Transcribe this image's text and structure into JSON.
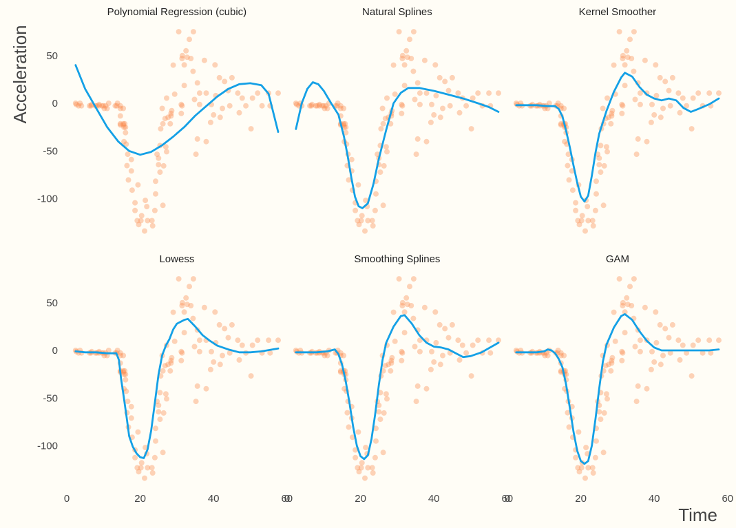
{
  "chart_data": {
    "type": "scatter",
    "ylabel": "Acceleration",
    "xlabel": "Time",
    "xlim": [
      0,
      60
    ],
    "ylim": [
      -140,
      80
    ],
    "x_ticks": [
      0,
      20,
      40,
      60
    ],
    "y_ticks": [
      -100,
      -50,
      0,
      50
    ],
    "grid": false,
    "colors": {
      "points": "#fb8c4e",
      "fit": "#14a0e6",
      "background": "#fffdf6"
    },
    "points": [
      [
        2.4,
        0.0
      ],
      [
        2.6,
        -1.3
      ],
      [
        3.2,
        -2.7
      ],
      [
        3.6,
        0.0
      ],
      [
        4.0,
        -2.7
      ],
      [
        6.2,
        -2.7
      ],
      [
        6.6,
        -2.7
      ],
      [
        6.8,
        -1.3
      ],
      [
        7.8,
        -2.7
      ],
      [
        8.2,
        -2.7
      ],
      [
        8.8,
        -1.3
      ],
      [
        8.8,
        -2.7
      ],
      [
        9.6,
        -2.7
      ],
      [
        10.0,
        -2.7
      ],
      [
        10.2,
        -5.4
      ],
      [
        10.6,
        -2.7
      ],
      [
        11.0,
        -5.4
      ],
      [
        11.4,
        0.0
      ],
      [
        13.2,
        -2.7
      ],
      [
        13.6,
        -2.7
      ],
      [
        13.8,
        0.0
      ],
      [
        14.6,
        -13.3
      ],
      [
        14.6,
        -2.7
      ],
      [
        14.6,
        -22.8
      ],
      [
        14.6,
        -21.5
      ],
      [
        14.6,
        -5.4
      ],
      [
        15.4,
        -5.4
      ],
      [
        15.4,
        -21.5
      ],
      [
        15.4,
        -22.8
      ],
      [
        15.6,
        -40.2
      ],
      [
        15.6,
        -25.2
      ],
      [
        15.8,
        -21.5
      ],
      [
        16.0,
        -25.2
      ],
      [
        16.0,
        -30.8
      ],
      [
        16.2,
        -42.9
      ],
      [
        16.4,
        -65.4
      ],
      [
        16.6,
        -53.5
      ],
      [
        16.8,
        -80.4
      ],
      [
        17.6,
        -59.0
      ],
      [
        17.6,
        -71.0
      ],
      [
        17.8,
        -91.1
      ],
      [
        18.6,
        -104.4
      ],
      [
        18.6,
        -112.5
      ],
      [
        19.2,
        -123.1
      ],
      [
        19.4,
        -85.6
      ],
      [
        19.6,
        -127.2
      ],
      [
        20.2,
        -123.1
      ],
      [
        20.4,
        -117.9
      ],
      [
        21.2,
        -134.0
      ],
      [
        21.4,
        -101.9
      ],
      [
        21.8,
        -108.4
      ],
      [
        22.0,
        -123.1
      ],
      [
        23.2,
        -123.1
      ],
      [
        23.4,
        -128.5
      ],
      [
        24.0,
        -112.5
      ],
      [
        24.2,
        -95.1
      ],
      [
        24.2,
        -81.8
      ],
      [
        24.6,
        -53.5
      ],
      [
        25.0,
        -64.4
      ],
      [
        25.0,
        -57.6
      ],
      [
        25.4,
        -72.3
      ],
      [
        25.4,
        -44.3
      ],
      [
        25.6,
        -26.8
      ],
      [
        26.0,
        -5.4
      ],
      [
        26.2,
        -107.1
      ],
      [
        26.2,
        -21.5
      ],
      [
        26.4,
        -65.6
      ],
      [
        26.8,
        -16.0
      ],
      [
        27.0,
        -45.6
      ],
      [
        27.2,
        5.4
      ],
      [
        27.2,
        -50.8
      ],
      [
        27.6,
        -14.7
      ],
      [
        28.2,
        -21.5
      ],
      [
        28.4,
        -13.3
      ],
      [
        28.4,
        -10.7
      ],
      [
        28.6,
        -7.7
      ],
      [
        29.4,
        9.5
      ],
      [
        31.2,
        -1.3
      ],
      [
        31.2,
        -10.7
      ],
      [
        31.4,
        -2.7
      ],
      [
        31.4,
        46.9
      ],
      [
        32.0,
        40.2
      ],
      [
        32.0,
        18.6
      ],
      [
        32.8,
        48.2
      ],
      [
        33.4,
        67.0
      ],
      [
        33.8,
        46.9
      ],
      [
        34.4,
        33.5
      ],
      [
        34.8,
        4.0
      ],
      [
        35.2,
        -53.5
      ],
      [
        35.6,
        -37.5
      ],
      [
        35.6,
        21.4
      ],
      [
        36.2,
        10.7
      ],
      [
        36.2,
        -1.3
      ],
      [
        38.0,
        -40.2
      ],
      [
        38.0,
        10.7
      ],
      [
        39.2,
        -20.1
      ],
      [
        39.4,
        -1.3
      ],
      [
        40.0,
        -12.2
      ],
      [
        40.4,
        40.2
      ],
      [
        40.6,
        8.0
      ],
      [
        41.6,
        26.8
      ],
      [
        41.8,
        -14.7
      ],
      [
        42.4,
        -5.4
      ],
      [
        43.0,
        22.8
      ],
      [
        44.0,
        13.3
      ],
      [
        44.4,
        -2.7
      ],
      [
        45.0,
        26.8
      ],
      [
        46.6,
        10.7
      ],
      [
        47.8,
        5.4
      ],
      [
        48.8,
        -2.7
      ],
      [
        50.2,
        -26.8
      ],
      [
        50.6,
        5.4
      ],
      [
        52.0,
        10.7
      ],
      [
        53.2,
        -2.7
      ],
      [
        55.0,
        10.7
      ],
      [
        55.4,
        -2.7
      ],
      [
        57.6,
        10.7
      ],
      [
        30.5,
        75.0
      ],
      [
        34.5,
        75.0
      ],
      [
        32.5,
        55.0
      ],
      [
        29.0,
        40.0
      ],
      [
        37.5,
        45.0
      ],
      [
        31.5,
        50.0
      ],
      [
        47.0,
        -10.0
      ]
    ],
    "panels": [
      {
        "title": "Polynomial Regression (cubic)",
        "fit": [
          [
            2.4,
            40
          ],
          [
            5,
            15
          ],
          [
            8,
            -5
          ],
          [
            11,
            -25
          ],
          [
            14,
            -40
          ],
          [
            17,
            -50
          ],
          [
            20,
            -54
          ],
          [
            23,
            -51
          ],
          [
            26,
            -44
          ],
          [
            29,
            -35
          ],
          [
            32,
            -25
          ],
          [
            35,
            -13
          ],
          [
            38,
            -3
          ],
          [
            41,
            7
          ],
          [
            44,
            15
          ],
          [
            47,
            20
          ],
          [
            50,
            21
          ],
          [
            53,
            19
          ],
          [
            55,
            10
          ],
          [
            57.6,
            -30
          ]
        ]
      },
      {
        "title": "Natural Splines",
        "fit": [
          [
            2.4,
            -27
          ],
          [
            4,
            0
          ],
          [
            5.5,
            15
          ],
          [
            7,
            22
          ],
          [
            8.5,
            20
          ],
          [
            10,
            13
          ],
          [
            12,
            0
          ],
          [
            14,
            -12
          ],
          [
            15.5,
            -35
          ],
          [
            16.5,
            -55
          ],
          [
            17.5,
            -78
          ],
          [
            18.5,
            -98
          ],
          [
            19.5,
            -108
          ],
          [
            20.5,
            -110
          ],
          [
            22,
            -105
          ],
          [
            23.5,
            -85
          ],
          [
            25,
            -58
          ],
          [
            27,
            -28
          ],
          [
            29,
            0
          ],
          [
            31,
            11
          ],
          [
            33,
            16
          ],
          [
            36,
            16
          ],
          [
            40,
            13
          ],
          [
            44,
            9
          ],
          [
            48,
            5
          ],
          [
            52,
            0
          ],
          [
            55,
            -4
          ],
          [
            57.6,
            -9
          ]
        ]
      },
      {
        "title": "Kernel Smoother",
        "fit": [
          [
            2.4,
            -2
          ],
          [
            5,
            -2
          ],
          [
            8,
            -2
          ],
          [
            11,
            -3
          ],
          [
            13,
            -3
          ],
          [
            14,
            -6
          ],
          [
            15,
            -14
          ],
          [
            16,
            -29
          ],
          [
            17,
            -46
          ],
          [
            18,
            -65
          ],
          [
            19,
            -83
          ],
          [
            20,
            -98
          ],
          [
            21,
            -103
          ],
          [
            22,
            -97
          ],
          [
            23,
            -76
          ],
          [
            24,
            -52
          ],
          [
            25,
            -32
          ],
          [
            27,
            -8
          ],
          [
            29,
            12
          ],
          [
            31,
            27
          ],
          [
            32,
            32
          ],
          [
            34,
            28
          ],
          [
            36,
            17
          ],
          [
            38,
            9
          ],
          [
            40,
            5
          ],
          [
            42,
            3
          ],
          [
            44,
            5
          ],
          [
            46,
            3
          ],
          [
            48,
            -5
          ],
          [
            50,
            -9
          ],
          [
            52,
            -6
          ],
          [
            55,
            -1
          ],
          [
            57.6,
            5
          ]
        ]
      },
      {
        "title": "Lowess",
        "fit": [
          [
            2.4,
            -1
          ],
          [
            5,
            -2
          ],
          [
            8,
            -2
          ],
          [
            11,
            -3
          ],
          [
            13,
            -3
          ],
          [
            13.5,
            -3
          ],
          [
            14.2,
            -10
          ],
          [
            14.8,
            -30
          ],
          [
            15.5,
            -48
          ],
          [
            16.3,
            -70
          ],
          [
            17,
            -90
          ],
          [
            18,
            -101
          ],
          [
            19,
            -108
          ],
          [
            20,
            -112
          ],
          [
            21,
            -113
          ],
          [
            22,
            -104
          ],
          [
            23,
            -84
          ],
          [
            24,
            -55
          ],
          [
            25,
            -25
          ],
          [
            26,
            -5
          ],
          [
            27,
            5
          ],
          [
            28,
            12
          ],
          [
            29,
            22
          ],
          [
            30,
            28
          ],
          [
            32,
            32
          ],
          [
            33,
            33
          ],
          [
            35,
            25
          ],
          [
            37,
            16
          ],
          [
            39,
            10
          ],
          [
            41,
            5
          ],
          [
            44,
            1
          ],
          [
            47,
            -2
          ],
          [
            50,
            -2
          ],
          [
            53,
            -1
          ],
          [
            57.6,
            2
          ]
        ]
      },
      {
        "title": "Smoothing Splines",
        "fit": [
          [
            2.4,
            -2
          ],
          [
            5,
            -2
          ],
          [
            8,
            -2
          ],
          [
            11,
            -1
          ],
          [
            12,
            0
          ],
          [
            13,
            1
          ],
          [
            14,
            -4
          ],
          [
            15,
            -15
          ],
          [
            16,
            -33
          ],
          [
            17,
            -55
          ],
          [
            18,
            -80
          ],
          [
            19,
            -100
          ],
          [
            20,
            -111
          ],
          [
            21,
            -114
          ],
          [
            22,
            -110
          ],
          [
            23,
            -93
          ],
          [
            24,
            -67
          ],
          [
            25,
            -36
          ],
          [
            26,
            -10
          ],
          [
            27,
            8
          ],
          [
            29,
            25
          ],
          [
            31,
            36
          ],
          [
            32,
            37
          ],
          [
            34,
            28
          ],
          [
            36,
            16
          ],
          [
            38,
            8
          ],
          [
            40,
            4
          ],
          [
            42,
            3
          ],
          [
            44,
            1
          ],
          [
            46,
            -3
          ],
          [
            48,
            -7
          ],
          [
            50,
            -6
          ],
          [
            53,
            -2
          ],
          [
            57.6,
            8
          ]
        ]
      },
      {
        "title": "GAM",
        "fit": [
          [
            2.4,
            -2
          ],
          [
            5,
            -2
          ],
          [
            8,
            -2
          ],
          [
            10,
            -1
          ],
          [
            11,
            1
          ],
          [
            12,
            0
          ],
          [
            13,
            -3
          ],
          [
            14,
            -9
          ],
          [
            15,
            -18
          ],
          [
            16,
            -36
          ],
          [
            17,
            -60
          ],
          [
            18,
            -85
          ],
          [
            19,
            -105
          ],
          [
            20,
            -116
          ],
          [
            21,
            -119
          ],
          [
            22,
            -116
          ],
          [
            23,
            -100
          ],
          [
            24,
            -72
          ],
          [
            25,
            -40
          ],
          [
            26,
            -12
          ],
          [
            27,
            6
          ],
          [
            29,
            24
          ],
          [
            31,
            36
          ],
          [
            32,
            38
          ],
          [
            34,
            32
          ],
          [
            36,
            20
          ],
          [
            38,
            10
          ],
          [
            40,
            3
          ],
          [
            42,
            0
          ],
          [
            45,
            0
          ],
          [
            50,
            0
          ],
          [
            55,
            0
          ],
          [
            57.6,
            1
          ]
        ]
      }
    ]
  }
}
